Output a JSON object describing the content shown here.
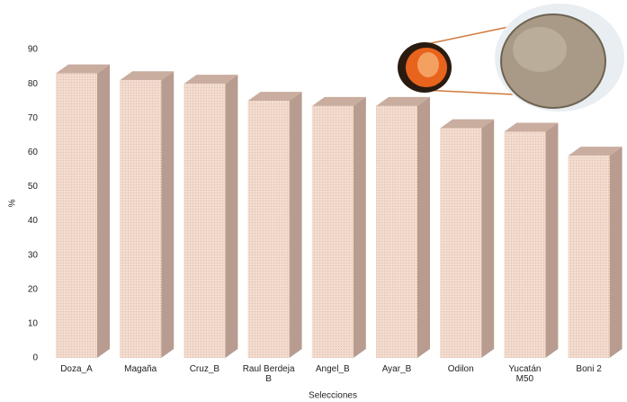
{
  "chart_data": {
    "type": "bar3d",
    "x_label": "Selecciones",
    "y_label": "%",
    "categories": [
      "Doza_A",
      "Magaña",
      "Cruz_B",
      "Raul Berdeja B",
      "Angel_B",
      "Ayar_B",
      "Odilon",
      "Yucatán M50",
      "Boni 2"
    ],
    "values": [
      83,
      81,
      80,
      75,
      73.5,
      73.5,
      67,
      66,
      59
    ],
    "color": "#f3dccf",
    "ylim": [
      0,
      90
    ],
    "yticks": [
      0,
      10,
      20,
      30,
      40,
      50,
      60,
      70,
      80,
      90
    ]
  }
}
